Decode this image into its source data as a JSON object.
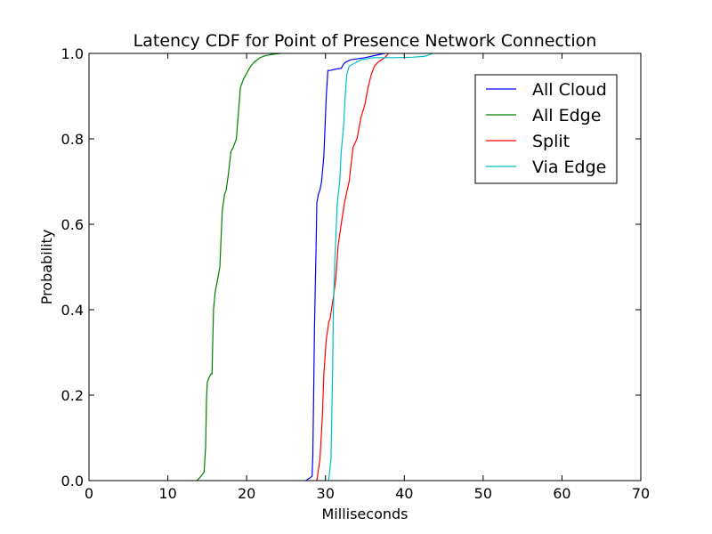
{
  "chart_data": {
    "type": "line",
    "title": "Latency CDF for Point of Presence Network Connection",
    "xlabel": "Milliseconds",
    "ylabel": "Probability",
    "xlim": [
      0,
      70
    ],
    "ylim": [
      0,
      1.0
    ],
    "xticks": [
      "0",
      "10",
      "20",
      "30",
      "40",
      "50",
      "60",
      "70"
    ],
    "yticks": [
      "0.0",
      "0.2",
      "0.4",
      "0.6",
      "0.8",
      "1.0"
    ],
    "grid": false,
    "legend_position": "top-right",
    "series": [
      {
        "name": "All Cloud",
        "color": "#0000ff",
        "x": [
          27.5,
          28.3,
          28.4,
          28.5,
          28.6,
          28.7,
          28.8,
          28.9,
          29.1,
          29.3,
          29.5,
          29.8,
          30.1,
          30.3,
          30.4,
          30.5,
          30.6,
          31.2,
          32.0,
          32.3,
          32.6,
          33.2,
          35.0,
          37.5
        ],
        "y": [
          0.0,
          0.01,
          0.06,
          0.2,
          0.35,
          0.45,
          0.54,
          0.65,
          0.67,
          0.68,
          0.7,
          0.76,
          0.9,
          0.96,
          0.96,
          0.96,
          0.96,
          0.963,
          0.965,
          0.975,
          0.98,
          0.985,
          0.99,
          1.0
        ]
      },
      {
        "name": "All Edge",
        "color": "#008000",
        "x": [
          13.7,
          14.2,
          14.6,
          14.8,
          14.9,
          15.0,
          15.2,
          15.5,
          15.6,
          15.8,
          16.0,
          16.1,
          16.3,
          16.6,
          16.9,
          17.2,
          17.4,
          17.7,
          18.0,
          18.3,
          18.7,
          19.2,
          19.6,
          19.9,
          20.5,
          21.0,
          21.7,
          22.4,
          23.3,
          24.3
        ],
        "y": [
          0.0,
          0.01,
          0.02,
          0.08,
          0.19,
          0.23,
          0.24,
          0.25,
          0.25,
          0.4,
          0.44,
          0.45,
          0.47,
          0.5,
          0.63,
          0.67,
          0.68,
          0.72,
          0.77,
          0.78,
          0.8,
          0.92,
          0.94,
          0.95,
          0.97,
          0.98,
          0.99,
          0.995,
          0.998,
          1.0
        ]
      },
      {
        "name": "Split",
        "color": "#ff0000",
        "x": [
          28.9,
          29.3,
          29.6,
          29.8,
          30.1,
          30.4,
          30.6,
          31.0,
          31.3,
          31.6,
          32.0,
          32.4,
          33.0,
          33.5,
          34.0,
          34.5,
          35.0,
          35.4,
          35.8,
          36.2,
          36.7,
          37.5,
          38.0
        ],
        "y": [
          0.0,
          0.05,
          0.15,
          0.25,
          0.33,
          0.37,
          0.38,
          0.43,
          0.47,
          0.55,
          0.6,
          0.65,
          0.7,
          0.78,
          0.8,
          0.85,
          0.88,
          0.92,
          0.95,
          0.97,
          0.98,
          0.99,
          1.0
        ]
      },
      {
        "name": "Via Edge",
        "color": "#00bfbf",
        "x": [
          30.4,
          30.7,
          30.9,
          31.0,
          31.2,
          31.5,
          31.8,
          32.0,
          32.3,
          32.5,
          32.7,
          33.0,
          33.5,
          34.5,
          36.0,
          38.5,
          41.0,
          42.5,
          43.2,
          43.6
        ],
        "y": [
          0.0,
          0.05,
          0.25,
          0.4,
          0.52,
          0.65,
          0.7,
          0.77,
          0.83,
          0.9,
          0.95,
          0.97,
          0.975,
          0.985,
          0.99,
          0.99,
          0.991,
          0.993,
          0.997,
          1.0
        ]
      }
    ]
  }
}
